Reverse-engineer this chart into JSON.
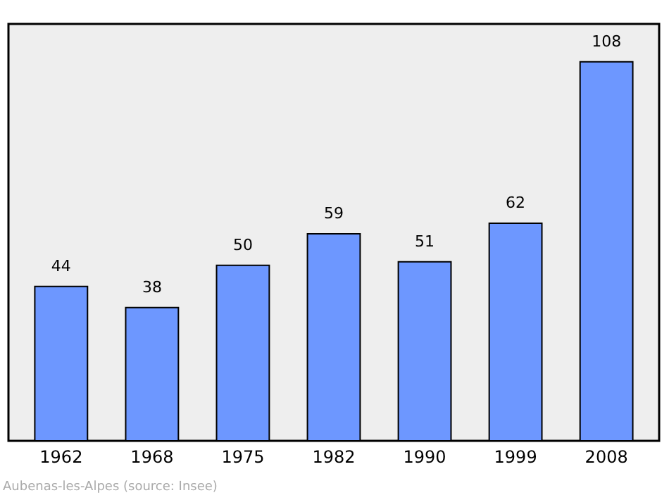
{
  "chart_data": {
    "type": "bar",
    "categories": [
      "1962",
      "1968",
      "1975",
      "1982",
      "1990",
      "1999",
      "2008"
    ],
    "values": [
      44,
      38,
      50,
      59,
      51,
      62,
      108
    ],
    "color": "#6d97ff",
    "data_labels": true,
    "annotations": [
      "Aubenas-les-Alpes    (source: Insee)"
    ]
  }
}
